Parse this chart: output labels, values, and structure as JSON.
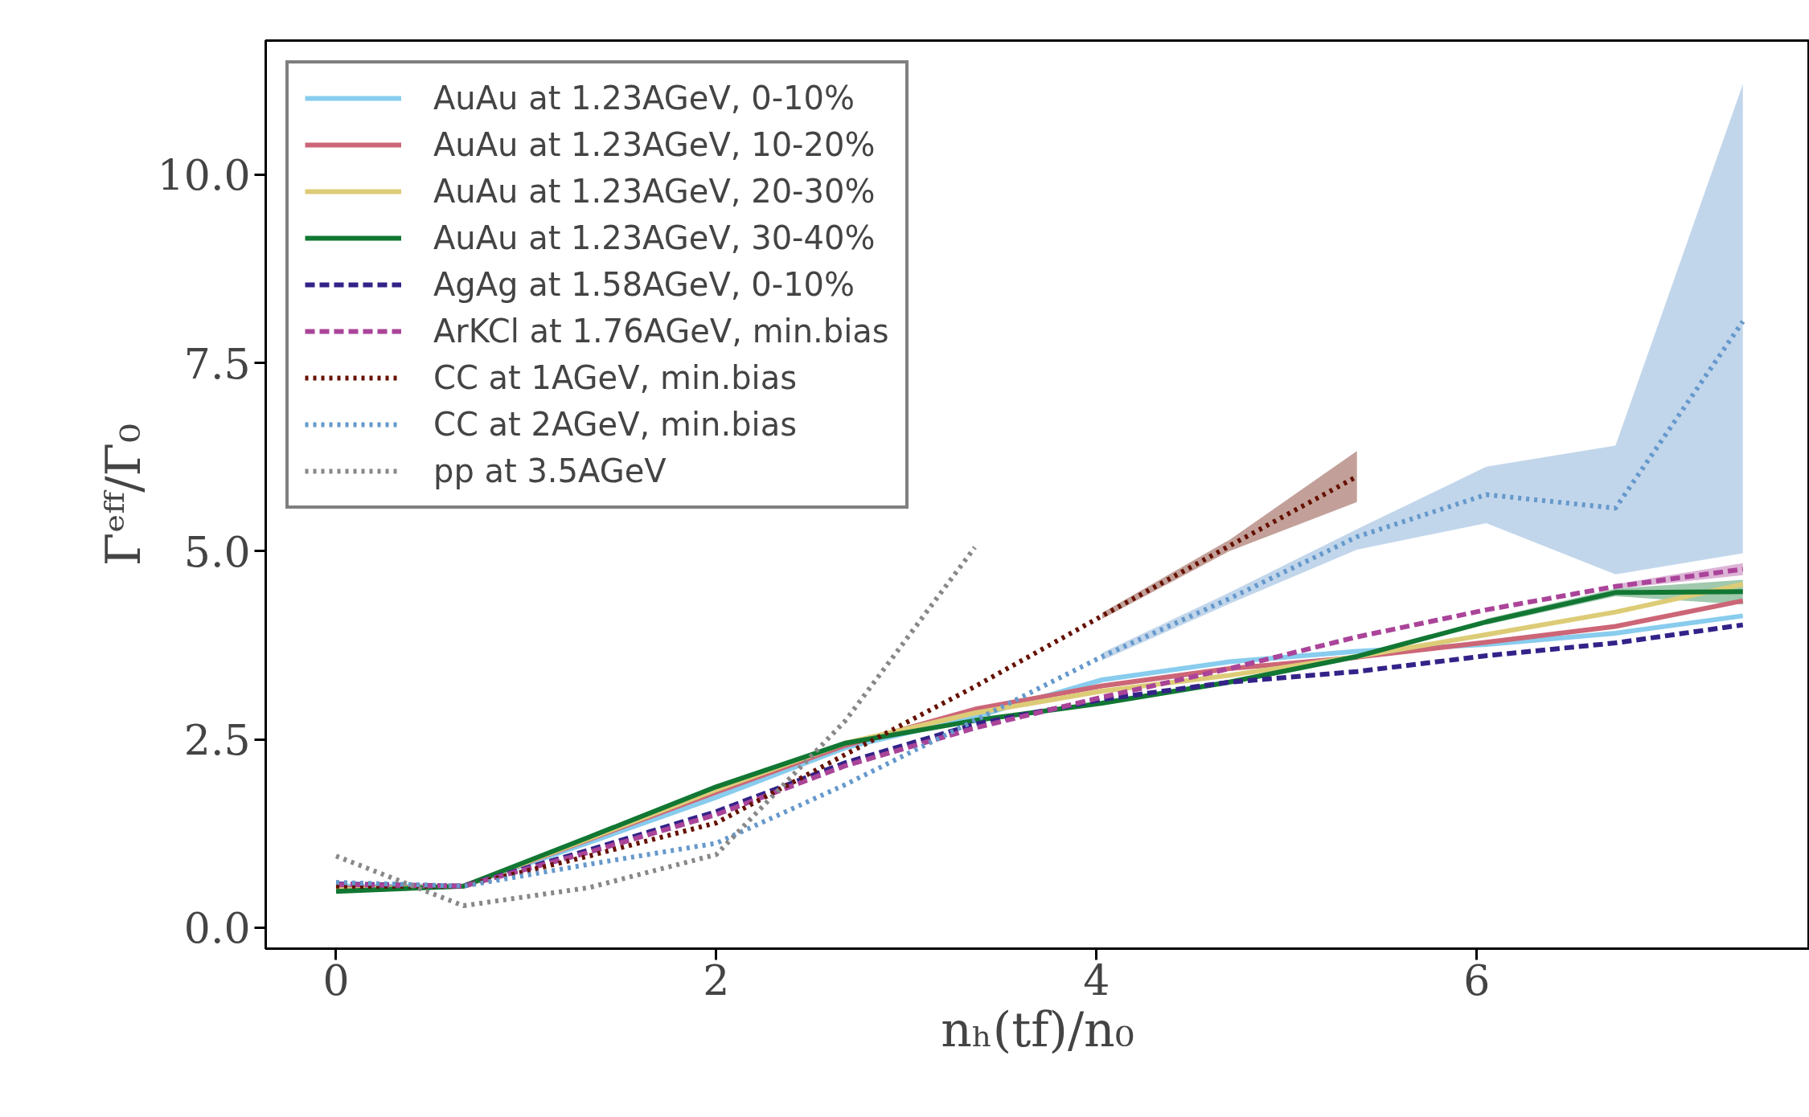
{
  "chart_data": {
    "type": "line",
    "xlabel": "nₕ(tf)/n₀",
    "ylabel": "Γᵉᶠᶠ/Γ₀",
    "x": [
      0,
      0.67,
      1.33,
      2.0,
      2.68,
      3.36,
      4.03,
      4.7,
      5.37,
      6.05,
      6.73,
      7.4
    ],
    "xlim": [
      -0.37,
      7.75
    ],
    "ylim": [
      -0.28,
      11.78
    ],
    "xticks": [
      0,
      2,
      4,
      6
    ],
    "yticks": [
      {
        "value": 0,
        "label": "0.0"
      },
      {
        "value": 2.5,
        "label": "2.5"
      },
      {
        "value": 5,
        "label": "5.0"
      },
      {
        "value": 7.5,
        "label": "7.5"
      },
      {
        "value": 10,
        "label": "10.0"
      }
    ],
    "grid": false,
    "legend": "top left",
    "series": [
      {
        "name": "AuAu at 1.23AGeV, 0-10%",
        "color": "#88ccee",
        "line_style": "solid",
        "values": [
          0.55,
          0.55,
          1.13,
          1.73,
          2.39,
          2.8,
          3.29,
          3.53,
          3.67,
          3.76,
          3.91,
          4.14
        ]
      },
      {
        "name": "AuAu at 1.23AGeV, 10-20%",
        "color": "#cc6677",
        "line_style": "solid",
        "values": [
          0.52,
          0.55,
          1.17,
          1.8,
          2.42,
          2.9,
          3.21,
          3.44,
          3.59,
          3.79,
          4.0,
          4.34
        ]
      },
      {
        "name": "AuAu at 1.23AGeV, 20-30%",
        "color": "#ddcc77",
        "line_style": "solid",
        "values": [
          0.5,
          0.55,
          1.18,
          1.83,
          2.45,
          2.85,
          3.14,
          3.35,
          3.6,
          3.89,
          4.19,
          4.56
        ]
      },
      {
        "name": "AuAu at 1.23AGeV, 30-40%",
        "color": "#117733",
        "line_style": "solid",
        "values": [
          0.48,
          0.55,
          1.2,
          1.87,
          2.45,
          2.75,
          2.98,
          3.26,
          3.6,
          4.06,
          4.45,
          4.46
        ],
        "lower": [
          null,
          null,
          null,
          null,
          null,
          null,
          null,
          null,
          null,
          4.02,
          4.4,
          4.29
        ],
        "upper": [
          null,
          null,
          null,
          null,
          null,
          null,
          null,
          null,
          null,
          4.1,
          4.5,
          4.62
        ]
      },
      {
        "name": "AgAg at 1.58AGeV, 0-10%",
        "color": "#332288",
        "line_style": "dashed",
        "values": [
          0.58,
          0.55,
          1.03,
          1.54,
          2.19,
          2.7,
          3.03,
          3.26,
          3.4,
          3.61,
          3.78,
          4.02
        ]
      },
      {
        "name": "ArKCl at 1.76AGeV, min.bias",
        "color": "#aa4499",
        "line_style": "dashed",
        "values": [
          0.57,
          0.55,
          1.0,
          1.5,
          2.15,
          2.65,
          3.06,
          3.44,
          3.86,
          4.22,
          4.53,
          4.76
        ],
        "lower": [
          null,
          null,
          null,
          null,
          null,
          null,
          null,
          null,
          null,
          null,
          4.5,
          4.68
        ],
        "upper": [
          null,
          null,
          null,
          null,
          null,
          null,
          null,
          null,
          null,
          null,
          4.56,
          4.84
        ]
      },
      {
        "name": "CC at 1AGeV, min.bias",
        "color": "#661100",
        "line_style": "dotted",
        "x": [
          0,
          0.67,
          1.33,
          2.0,
          2.68,
          3.36,
          4.03,
          4.7,
          5.37
        ],
        "values": [
          0.55,
          0.55,
          0.95,
          1.39,
          2.3,
          3.2,
          4.14,
          5.07,
          5.99
        ],
        "lower": [
          null,
          null,
          null,
          null,
          null,
          null,
          4.1,
          5.0,
          5.65
        ],
        "upper": [
          null,
          null,
          null,
          null,
          null,
          null,
          4.18,
          5.15,
          6.33
        ]
      },
      {
        "name": "CC at 2AGeV, min.bias",
        "color": "#6699cc",
        "line_style": "dotted",
        "values": [
          0.6,
          0.55,
          0.84,
          1.12,
          1.9,
          2.75,
          3.6,
          4.37,
          5.19,
          5.75,
          5.57,
          8.05
        ],
        "lower": [
          null,
          null,
          null,
          null,
          null,
          null,
          3.55,
          4.3,
          5.02,
          5.37,
          4.69,
          4.97
        ],
        "upper": [
          null,
          null,
          null,
          null,
          null,
          null,
          3.65,
          4.45,
          5.29,
          6.12,
          6.4,
          11.2
        ]
      },
      {
        "name": "pp at 3.5AGeV",
        "color": "#888888",
        "line_style": "dotted",
        "x": [
          0,
          0.67,
          1.33,
          2.0,
          2.68,
          3.36
        ],
        "values": [
          0.95,
          0.29,
          0.53,
          0.97,
          2.75,
          5.05
        ]
      }
    ]
  }
}
